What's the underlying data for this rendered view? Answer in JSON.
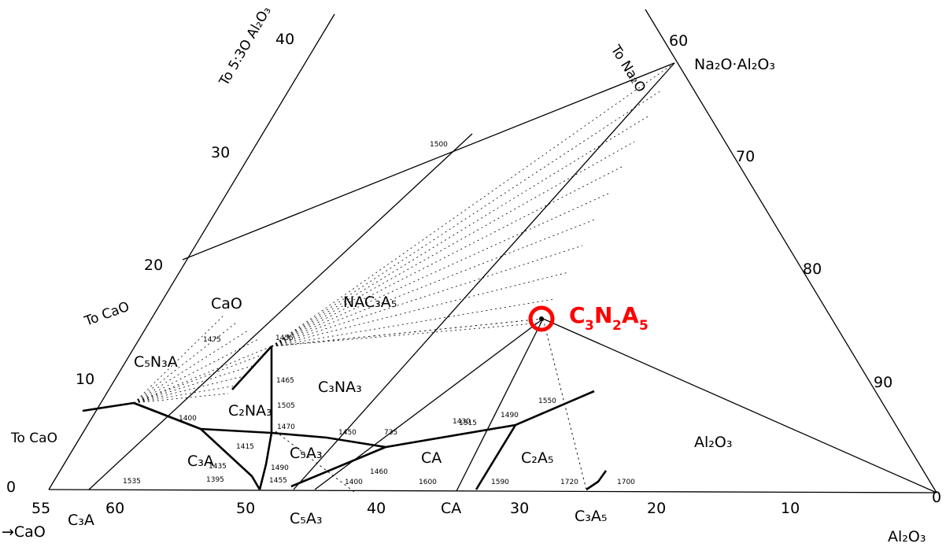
{
  "corners": {
    "na2o_al2o3": "Na₂O·Al₂O₃",
    "al2o3_corner": "Al₂O₃",
    "cao_arrow": "→CaO",
    "c3a_label": "C₃A"
  },
  "direction_labels": {
    "to_5_30_al2o3": "To 5:3O Al₂O₃",
    "to_na2o": "To Na₂O",
    "to_cao_upper": "To CaO",
    "to_cao_lower": "To CaO"
  },
  "left_axis_ticks": [
    "40",
    "30",
    "20",
    "10",
    "0"
  ],
  "right_axis_ticks": [
    "60",
    "70",
    "80",
    "90",
    "0"
  ],
  "bottom_axis_ticks": [
    "55",
    "60",
    "50",
    "40",
    "30",
    "20",
    "10"
  ],
  "phase_labels": {
    "cao": "CaO",
    "nac3a5": "NAC₃A₅",
    "c3nc4a": "C₃NA₃",
    "c2na3": "C₂NA₃",
    "c5n3a": "C₅N₃A",
    "c3a": "C₃A",
    "c5a3": "C₅A₃",
    "ca": "CA",
    "c2a5": "C₂A₅",
    "al2o3": "Al₂O₃",
    "ca_bottom": "CA",
    "c3a5_bottom": "C₃A₅",
    "c5a3_bottom": "C₅A₃"
  },
  "temperatures": [
    "1475",
    "1455",
    "1465",
    "1505",
    "1470",
    "1450",
    "1430",
    "1400",
    "1415",
    "1435",
    "1395",
    "1490",
    "1455",
    "1460",
    "1400",
    "1535",
    "1600",
    "1590",
    "1515",
    "1490",
    "1550",
    "1720",
    "1700",
    "735",
    "1500"
  ],
  "highlight": {
    "label_c": "C",
    "sub_3": "3",
    "label_n": "N",
    "sub_2": "2",
    "label_a": "A",
    "sub_5": "5",
    "color": "#ff0000"
  }
}
